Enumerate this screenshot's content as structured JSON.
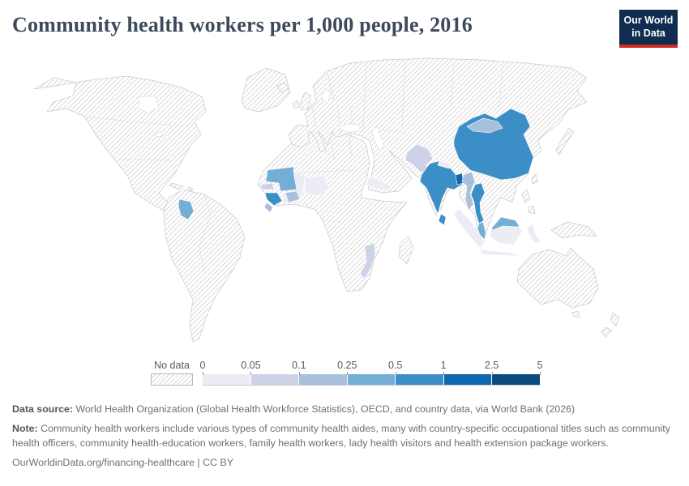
{
  "header": {
    "title": "Community health workers per 1,000 people, 2016",
    "logo_line1": "Our World",
    "logo_line2": "in Data",
    "logo_bg_color": "#102d50",
    "logo_accent_color": "#cf2d20"
  },
  "legend": {
    "no_data_label": "No data",
    "ticks": [
      "0",
      "0.05",
      "0.1",
      "0.25",
      "0.5",
      "1",
      "2.5",
      "5"
    ]
  },
  "footer": {
    "data_source_label": "Data source:",
    "data_source_text": " World Health Organization (Global Health Workforce Statistics), OECD, and country data, via World Bank (2026)",
    "note_label": "Note:",
    "note_text": " Community health workers include various types of community health aides, many with country-specific occupational titles such as community health officers, community health-education workers, family health workers, lady health visitors and health extension package workers.",
    "citation": "OurWorldinData.org/financing-healthcare | CC BY"
  },
  "chart_data": {
    "type": "choropleth_map",
    "title": "Community health workers per 1,000 people",
    "year": 2016,
    "no_data_pattern": "diagonal-hatch",
    "bins": [
      {
        "range": "0–0.05",
        "color": "#ebecf4"
      },
      {
        "range": "0.05–0.1",
        "color": "#cdd2e7"
      },
      {
        "range": "0.1–0.25",
        "color": "#a8c0dc"
      },
      {
        "range": "0.25–0.5",
        "color": "#74aed5"
      },
      {
        "range": "0.5–1",
        "color": "#3b8ec6"
      },
      {
        "range": "1–2.5",
        "color": "#0e69af"
      },
      {
        "range": "2.5–5",
        "color": "#0d4c7e"
      }
    ],
    "countries": [
      {
        "name": "Mali",
        "bin": "0–0.05",
        "bin_index": 0
      },
      {
        "name": "Niger",
        "bin": "0–0.05",
        "bin_index": 0
      },
      {
        "name": "Yemen",
        "bin": "0–0.05",
        "bin_index": 0
      },
      {
        "name": "Nepal",
        "bin": "0–0.05",
        "bin_index": 0
      },
      {
        "name": "Indonesia",
        "bin": "0–0.05",
        "bin_index": 0
      },
      {
        "name": "Senegal",
        "bin": "0.05–0.1",
        "bin_index": 1
      },
      {
        "name": "Mozambique",
        "bin": "0.05–0.1",
        "bin_index": 1
      },
      {
        "name": "Pakistan",
        "bin": "0.05–0.1",
        "bin_index": 1
      },
      {
        "name": "Sierra Leone",
        "bin": "0.1–0.25",
        "bin_index": 2
      },
      {
        "name": "Burkina Faso",
        "bin": "0.1–0.25",
        "bin_index": 2
      },
      {
        "name": "Mongolia",
        "bin": "0.1–0.25",
        "bin_index": 2
      },
      {
        "name": "Myanmar",
        "bin": "0.1–0.25",
        "bin_index": 2
      },
      {
        "name": "Guyana",
        "bin": "0.25–0.5",
        "bin_index": 3
      },
      {
        "name": "Mauritania",
        "bin": "0.25–0.5",
        "bin_index": 3
      },
      {
        "name": "Malaysia",
        "bin": "0.25–0.5",
        "bin_index": 3
      },
      {
        "name": "Guinea",
        "bin": "0.5–1",
        "bin_index": 4
      },
      {
        "name": "India",
        "bin": "0.5–1",
        "bin_index": 4
      },
      {
        "name": "China",
        "bin": "0.5–1",
        "bin_index": 4
      },
      {
        "name": "Thailand",
        "bin": "0.5–1",
        "bin_index": 4
      },
      {
        "name": "Sri Lanka",
        "bin": "0.5–1",
        "bin_index": 4
      },
      {
        "name": "Bangladesh",
        "bin": "1–2.5",
        "bin_index": 5
      }
    ]
  }
}
